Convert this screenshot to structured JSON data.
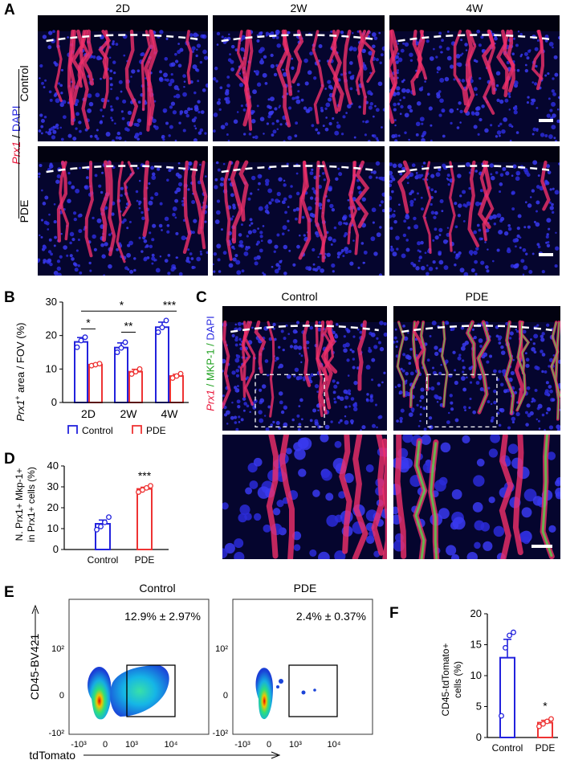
{
  "panels": {
    "A": "A",
    "B": "B",
    "C": "C",
    "D": "D",
    "E": "E",
    "F": "F"
  },
  "panelA": {
    "columns": [
      "2D",
      "2W",
      "4W"
    ],
    "rows": [
      "Control",
      "PDE"
    ],
    "side_label_gene": "Prx1",
    "side_label_sep": " / ",
    "side_label_stain": "DAPI"
  },
  "panelB": {
    "ylabel_gene": "Prx1",
    "ylabel_sup": "+",
    "ylabel_rest": " area / FOV (%)",
    "legend": [
      "Control",
      "PDE"
    ],
    "sig": [
      "*",
      "**",
      "*",
      "***",
      "*"
    ]
  },
  "panelC": {
    "columns": [
      "Control",
      "PDE"
    ],
    "side_gene": "Prx1",
    "side_mid": " / MKP-1 / ",
    "side_stain": "DAPI"
  },
  "panelD": {
    "ylabel_line1": "N. Prx1+ Mkp-1+",
    "ylabel_line2": "in Prx1+ cells (%)",
    "sig": "***"
  },
  "panelE": {
    "columns": [
      "Control",
      "PDE"
    ],
    "stats": [
      "12.9% ± 2.97%",
      "2.4% ± 0.37%"
    ],
    "ylabel": "CD45-BV421",
    "xlabel": "tdTomato",
    "yticks": [
      "10²",
      "0",
      "-10²"
    ],
    "xticks": [
      "-10³",
      "0",
      "10³",
      "10⁴"
    ]
  },
  "panelF": {
    "ylabel_line1": "CD45-tdTomato+",
    "ylabel_line2": "cells (%)",
    "sig": "*"
  },
  "chart_data": [
    {
      "type": "bar",
      "title": "",
      "ylabel": "Prx1+ area / FOV (%)",
      "categories": [
        "2D",
        "2W",
        "4W"
      ],
      "ylim": [
        0,
        30
      ],
      "yticks": [
        0,
        10,
        20,
        30
      ],
      "series": [
        {
          "name": "Control",
          "color": "#2222dd",
          "values": [
            18.1,
            16.4,
            22.5
          ],
          "sem": [
            1.3,
            1.4,
            1.5
          ],
          "points": [
            [
              16.5,
              18.5,
              19.5
            ],
            [
              15,
              16.3,
              18
            ],
            [
              21,
              22.4,
              24.5
            ]
          ]
        },
        {
          "name": "PDE",
          "color": "#ee3333",
          "values": [
            11.3,
            9.2,
            7.9
          ],
          "sem": [
            0.3,
            0.7,
            0.5
          ],
          "points": [
            [
              11,
              11.3,
              11.6
            ],
            [
              8.5,
              9.2,
              10
            ],
            [
              7.3,
              7.9,
              8.6
            ]
          ]
        }
      ]
    },
    {
      "type": "bar",
      "title": "",
      "ylabel": "N. Prx1+ Mkp-1+ in Prx1+ cells (%)",
      "categories": [
        "Control",
        "PDE"
      ],
      "ylim": [
        0,
        40
      ],
      "yticks": [
        0,
        10,
        20,
        30,
        40
      ],
      "values": [
        12.3,
        29.0
      ],
      "sem": [
        1.8,
        0.8
      ],
      "colors": [
        "#2222dd",
        "#ee3333"
      ],
      "points": [
        [
          9.5,
          11,
          13,
          15.5
        ],
        [
          27.5,
          28.5,
          29.5,
          30.5
        ]
      ]
    },
    {
      "type": "bar",
      "title": "",
      "ylabel": "CD45-tdTomato+ cells (%)",
      "categories": [
        "Control",
        "PDE"
      ],
      "ylim": [
        0,
        20
      ],
      "yticks": [
        0,
        5,
        10,
        15,
        20
      ],
      "values": [
        12.9,
        2.4
      ],
      "sem": [
        2.97,
        0.37
      ],
      "colors": [
        "#2222dd",
        "#ee3333"
      ],
      "points": [
        [
          3.5,
          14.5,
          16.5,
          17.0
        ],
        [
          1.8,
          2.2,
          2.6,
          3.0
        ]
      ]
    }
  ]
}
